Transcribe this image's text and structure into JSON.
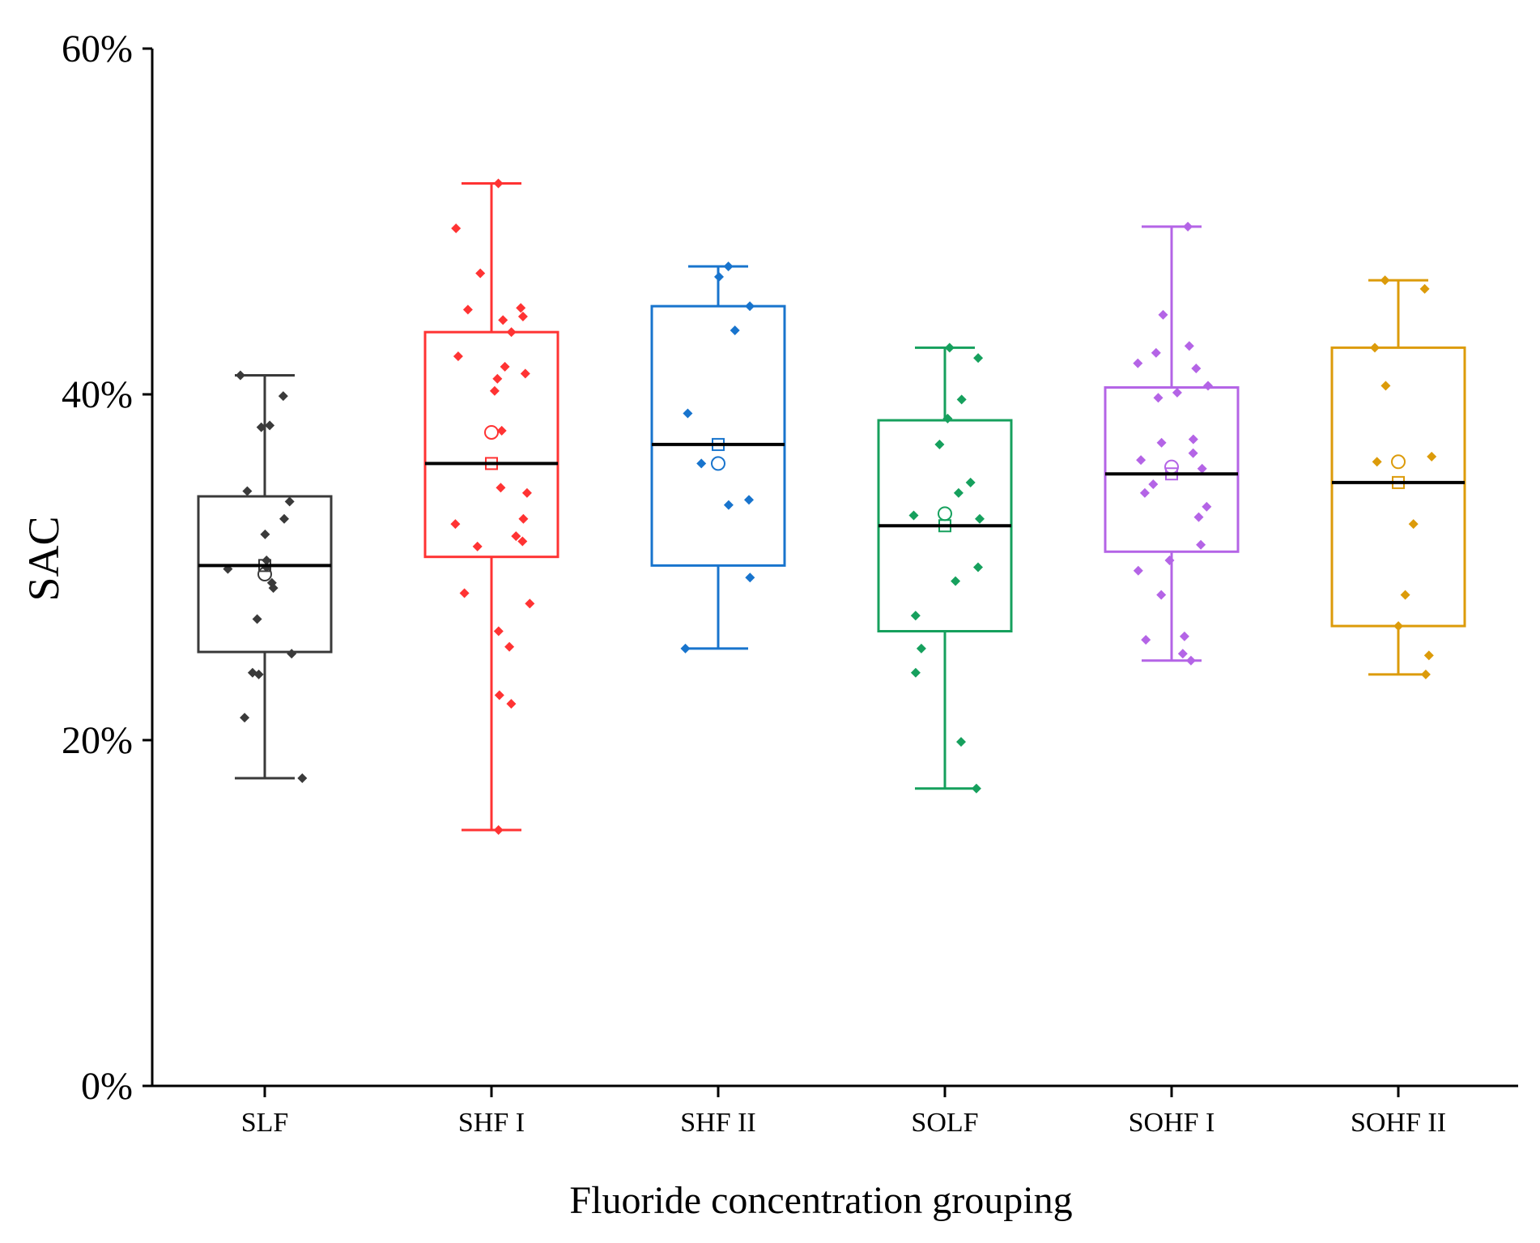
{
  "chart_data": {
    "type": "box",
    "title": "",
    "xlabel": "Fluoride concentration grouping",
    "ylabel": "SAC",
    "ylim": [
      0,
      60
    ],
    "yticks": [
      {
        "value": 0,
        "label": "0%"
      },
      {
        "value": 20,
        "label": "20%"
      },
      {
        "value": 40,
        "label": "40%"
      },
      {
        "value": 60,
        "label": "60%"
      }
    ],
    "grid": false,
    "groups": [
      {
        "name": "SLF",
        "color": "#3a3a3a",
        "min": 17.8,
        "q1": 25.1,
        "median": 30.1,
        "q3": 34.1,
        "max": 41.1,
        "mean": 29.6,
        "points": [
          41.1,
          39.9,
          38.2,
          38.1,
          34.4,
          33.8,
          32.8,
          31.9,
          30.4,
          30.0,
          29.9,
          29.1,
          28.8,
          27.0,
          25.0,
          23.9,
          23.8,
          21.3,
          17.8
        ]
      },
      {
        "name": "SHF I",
        "color": "#ff3333",
        "min": 14.8,
        "q1": 30.6,
        "median": 36.0,
        "q3": 43.6,
        "max": 52.2,
        "mean": 37.8,
        "points": [
          52.2,
          49.6,
          47.0,
          45.0,
          44.9,
          44.5,
          44.3,
          43.6,
          42.2,
          41.6,
          41.2,
          40.9,
          40.2,
          37.9,
          34.6,
          34.3,
          32.8,
          32.5,
          31.8,
          31.5,
          31.2,
          28.5,
          27.9,
          26.3,
          25.4,
          22.6,
          22.1,
          14.8
        ]
      },
      {
        "name": "SHF II",
        "color": "#1874cd",
        "min": 25.3,
        "q1": 30.1,
        "median": 37.1,
        "q3": 45.1,
        "max": 47.4,
        "mean": 36.0,
        "points": [
          47.4,
          46.8,
          45.1,
          43.7,
          38.9,
          36.0,
          33.9,
          33.6,
          29.4,
          25.3
        ]
      },
      {
        "name": "SOLF",
        "color": "#16a05d",
        "min": 17.2,
        "q1": 26.3,
        "median": 32.4,
        "q3": 38.5,
        "max": 42.7,
        "mean": 33.1,
        "points": [
          42.7,
          42.1,
          39.7,
          38.6,
          37.1,
          34.9,
          34.3,
          33.0,
          32.8,
          30.0,
          29.2,
          27.2,
          25.3,
          23.9,
          19.9,
          17.2
        ]
      },
      {
        "name": "SOHF I",
        "color": "#b464e6",
        "min": 24.6,
        "q1": 30.9,
        "median": 35.4,
        "q3": 40.4,
        "max": 49.7,
        "mean": 35.8,
        "points": [
          49.7,
          44.6,
          42.8,
          42.4,
          41.8,
          41.5,
          40.5,
          40.1,
          39.8,
          37.4,
          37.2,
          36.6,
          36.2,
          35.7,
          34.8,
          34.3,
          33.5,
          32.9,
          31.3,
          30.4,
          29.8,
          28.4,
          26.0,
          25.8,
          25.0,
          24.6
        ]
      },
      {
        "name": "SOHF II",
        "color": "#dc9b0a",
        "min": 23.8,
        "q1": 26.6,
        "median": 34.9,
        "q3": 42.7,
        "max": 46.6,
        "mean": 36.1,
        "points": [
          46.6,
          46.1,
          42.7,
          40.5,
          36.4,
          36.1,
          32.5,
          28.4,
          26.6,
          24.9,
          23.8
        ]
      }
    ]
  }
}
